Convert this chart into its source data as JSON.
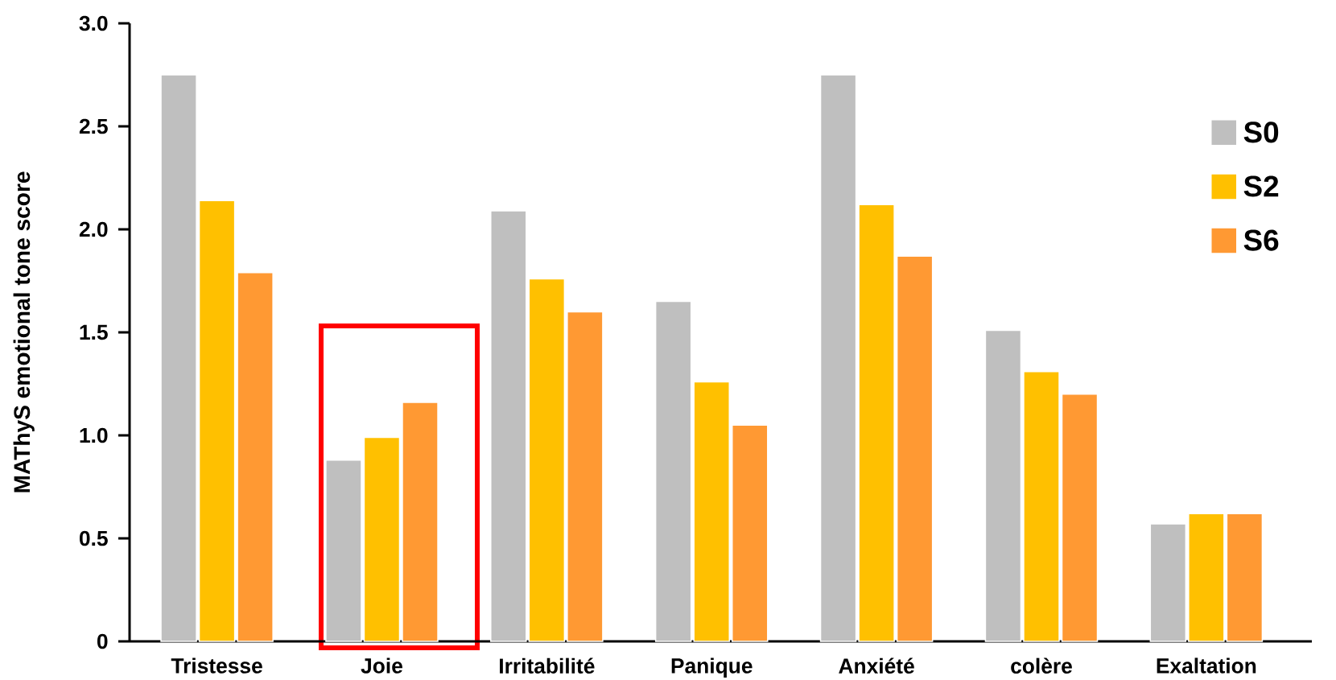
{
  "chart_data": {
    "type": "bar",
    "ylabel": "MAThyS emotional tone score",
    "categories": [
      "Tristesse",
      "Joie",
      "Irritabilité",
      "Panique",
      "Anxiété",
      "colère",
      "Exaltation"
    ],
    "series": [
      {
        "name": "S0",
        "color": "#bfbfbf",
        "values": [
          2.75,
          0.88,
          2.09,
          1.65,
          2.75,
          1.51,
          0.57
        ]
      },
      {
        "name": "S2",
        "color": "#ffc000",
        "values": [
          2.14,
          0.99,
          1.76,
          1.26,
          2.12,
          1.31,
          0.62
        ]
      },
      {
        "name": "S6",
        "color": "#ff9933",
        "values": [
          1.79,
          1.16,
          1.6,
          1.05,
          1.87,
          1.2,
          0.62
        ]
      }
    ],
    "ylim": [
      0,
      3.0
    ],
    "yticks": [
      0,
      {
        "value": 0.5,
        "label": "0.5"
      },
      {
        "value": 1.0,
        "label": "1.0"
      },
      {
        "value": 1.5,
        "label": "1.5"
      },
      {
        "value": 2.0,
        "label": "2.0"
      },
      {
        "value": 2.5,
        "label": "2.5"
      },
      {
        "value": 3.0,
        "label": "3.0"
      }
    ],
    "legend": "top right"
  }
}
